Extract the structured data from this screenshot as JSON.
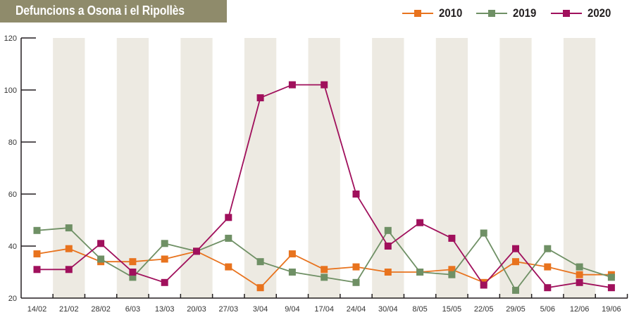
{
  "title": "Defuncions a Osona i el Ripollès",
  "colors": {
    "title_bg": "#8f8b6b",
    "band": "#edeae2",
    "axis": "#231f20"
  },
  "chart_data": {
    "type": "line",
    "title": "Defuncions a Osona i el Ripollès",
    "xlabel": "",
    "ylabel": "",
    "ylim": [
      20,
      120
    ],
    "yticks": [
      "20",
      "40",
      "60",
      "80",
      "100",
      "120"
    ],
    "grid": false,
    "legend_position": "top-right",
    "categories": [
      "14/02",
      "21/02",
      "28/02",
      "6/03",
      "13/03",
      "20/03",
      "27/03",
      "3/04",
      "9/04",
      "17/04",
      "24/04",
      "30/04",
      "8/05",
      "15/05",
      "22/05",
      "29/05",
      "5/06",
      "12/06",
      "19/06"
    ],
    "series": [
      {
        "name": "2010",
        "color": "#e8731e",
        "values": [
          37,
          39,
          34,
          34,
          35,
          38,
          32,
          24,
          37,
          31,
          32,
          30,
          30,
          31,
          26,
          34,
          32,
          29,
          29
        ]
      },
      {
        "name": "2019",
        "color": "#6f9065",
        "values": [
          46,
          47,
          35,
          28,
          41,
          38,
          43,
          34,
          30,
          28,
          26,
          46,
          30,
          29,
          45,
          23,
          39,
          32,
          28
        ]
      },
      {
        "name": "2020",
        "color": "#a0105c",
        "values": [
          31,
          31,
          41,
          30,
          26,
          38,
          51,
          97,
          102,
          102,
          60,
          40,
          49,
          43,
          25,
          39,
          24,
          26,
          24
        ]
      }
    ]
  }
}
